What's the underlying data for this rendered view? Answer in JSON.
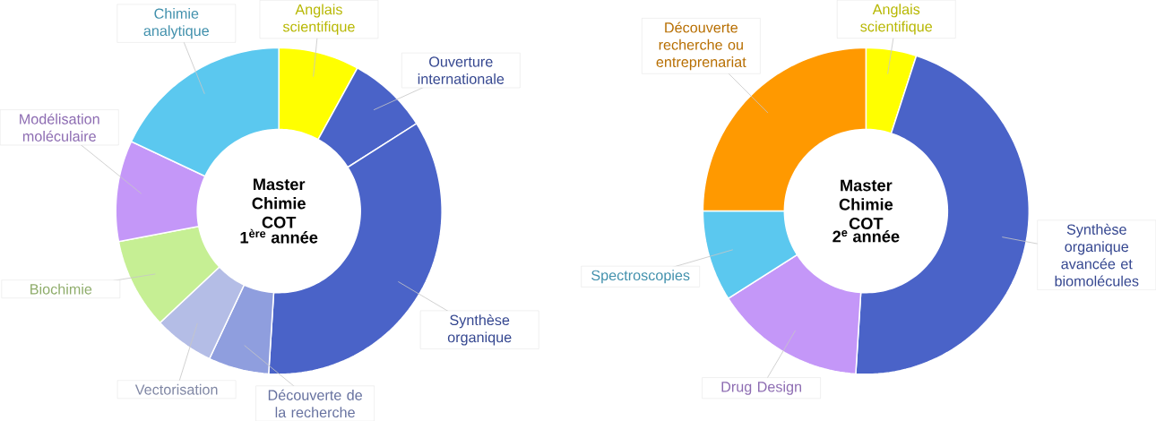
{
  "chart_data": [
    {
      "type": "donut",
      "title": "Master Chimie COT",
      "subtitle": "1$^{ère}$ année",
      "categories": [
        "Anglais scientifique",
        "Ouverture internationale",
        "Synthèse organique",
        "Découverte de la recherche",
        "Vectorisation",
        "Biochimie",
        "Modélisation moléculaire",
        "Chimie analytique"
      ],
      "values": [
        8,
        8,
        35,
        6,
        6,
        9,
        10,
        18
      ],
      "colors": [
        "#ffff00",
        "#4a63c8",
        "#4a63c8",
        "#8f9ede",
        "#b4bde6",
        "#c6ef94",
        "#c497f8",
        "#5bc8ef"
      ]
    },
    {
      "type": "donut",
      "title": "Master Chimie COT",
      "subtitle": "2$^{e}$ année",
      "categories": [
        "Anglais scientifique",
        "Synthèse organique avancée et biomolécules",
        "Drug Design",
        "Spectroscopies",
        "Découverte recherche ou entreprenariat"
      ],
      "values": [
        5,
        46,
        15,
        9,
        25
      ],
      "colors": [
        "#ffff00",
        "#4a63c8",
        "#c497f8",
        "#5bc8ef",
        "#ff9900"
      ]
    }
  ]
}
